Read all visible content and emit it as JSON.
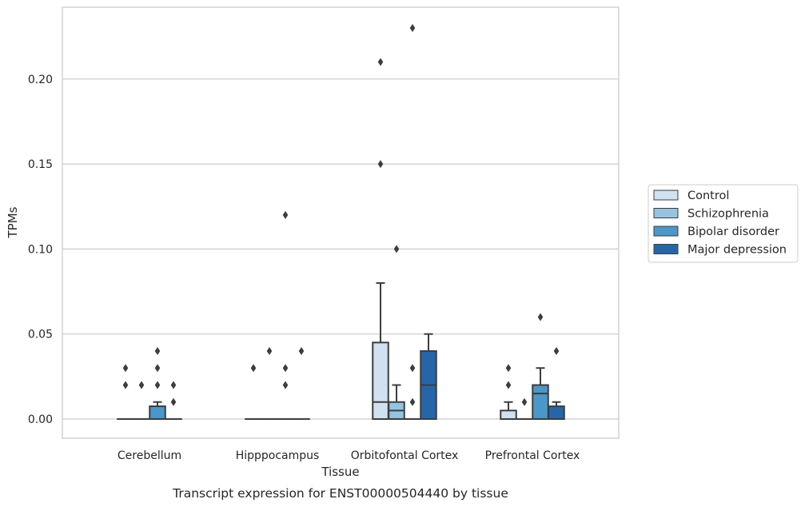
{
  "chart_data": {
    "type": "boxplot",
    "xlabel": "Tissue",
    "ylabel": "TPMs",
    "caption": "Transcript expression for ENST00000504440 by tissue",
    "ylim": [
      -0.011,
      0.242
    ],
    "yticks": [
      0.0,
      0.05,
      0.1,
      0.15,
      0.2
    ],
    "ytick_labels": [
      "0.00",
      "0.05",
      "0.10",
      "0.15",
      "0.20"
    ],
    "grid": "horizontal",
    "legend_position": "right",
    "categories": [
      "Cerebellum",
      "Hipppocampus",
      "Orbitofontal Cortex",
      "Prefrontal Cortex"
    ],
    "series": [
      {
        "name": "Control",
        "color": "#d0e1f2",
        "boxes": [
          {
            "q1": 0.0,
            "median": 0.0,
            "q3": 0.0,
            "whislo": 0.0,
            "whishi": 0.0,
            "fliers": [
              0.02,
              0.03
            ]
          },
          {
            "q1": 0.0,
            "median": 0.0,
            "q3": 0.0,
            "whislo": 0.0,
            "whishi": 0.0,
            "fliers": [
              0.03
            ]
          },
          {
            "q1": 0.0,
            "median": 0.01,
            "q3": 0.045,
            "whislo": 0.0,
            "whishi": 0.08,
            "fliers": [
              0.15,
              0.21
            ]
          },
          {
            "q1": 0.0,
            "median": 0.0,
            "q3": 0.005,
            "whislo": 0.0,
            "whishi": 0.01,
            "fliers": [
              0.02,
              0.03
            ]
          }
        ]
      },
      {
        "name": "Schizophrenia",
        "color": "#94c4df",
        "boxes": [
          {
            "q1": 0.0,
            "median": 0.0,
            "q3": 0.0,
            "whislo": 0.0,
            "whishi": 0.0,
            "fliers": [
              0.02
            ]
          },
          {
            "q1": 0.0,
            "median": 0.0,
            "q3": 0.0,
            "whislo": 0.0,
            "whishi": 0.0,
            "fliers": [
              0.04
            ]
          },
          {
            "q1": 0.0,
            "median": 0.005,
            "q3": 0.01,
            "whislo": 0.0,
            "whishi": 0.02,
            "fliers": [
              0.1
            ]
          },
          {
            "q1": 0.0,
            "median": 0.0,
            "q3": 0.0,
            "whislo": 0.0,
            "whishi": 0.0,
            "fliers": [
              0.01
            ]
          }
        ]
      },
      {
        "name": "Bipolar disorder",
        "color": "#4a98c9",
        "boxes": [
          {
            "q1": 0.0,
            "median": 0.0,
            "q3": 0.0075,
            "whislo": 0.0,
            "whishi": 0.01,
            "fliers": [
              0.02,
              0.03,
              0.04
            ]
          },
          {
            "q1": 0.0,
            "median": 0.0,
            "q3": 0.0,
            "whislo": 0.0,
            "whishi": 0.0,
            "fliers": [
              0.02,
              0.03,
              0.12
            ]
          },
          {
            "q1": 0.0,
            "median": 0.0,
            "q3": 0.0,
            "whislo": 0.0,
            "whishi": 0.0,
            "fliers": [
              0.01,
              0.03,
              0.23
            ]
          },
          {
            "q1": 0.0,
            "median": 0.015,
            "q3": 0.02,
            "whislo": 0.0,
            "whishi": 0.03,
            "fliers": [
              0.06
            ]
          }
        ]
      },
      {
        "name": "Major depression",
        "color": "#2566ab",
        "boxes": [
          {
            "q1": 0.0,
            "median": 0.0,
            "q3": 0.0,
            "whislo": 0.0,
            "whishi": 0.0,
            "fliers": [
              0.01,
              0.02
            ]
          },
          {
            "q1": 0.0,
            "median": 0.0,
            "q3": 0.0,
            "whislo": 0.0,
            "whishi": 0.0,
            "fliers": [
              0.04
            ]
          },
          {
            "q1": 0.0,
            "median": 0.02,
            "q3": 0.04,
            "whislo": 0.0,
            "whishi": 0.05,
            "fliers": []
          },
          {
            "q1": 0.0,
            "median": 0.0,
            "q3": 0.0075,
            "whislo": 0.0,
            "whishi": 0.01,
            "fliers": [
              0.04
            ]
          }
        ]
      }
    ]
  }
}
